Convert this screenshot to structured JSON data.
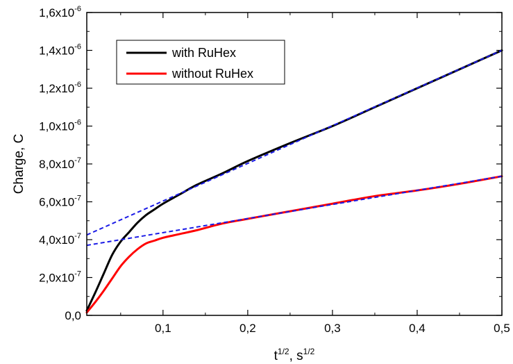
{
  "chart_data": {
    "type": "line",
    "title": "",
    "xlabel": {
      "base": "t",
      "base_sup": "1/2",
      "sep": ", ",
      "unit": "s",
      "unit_sup": "1/2"
    },
    "ylabel": "Charge, C",
    "xlim": [
      0.01,
      0.5
    ],
    "ylim": [
      0,
      1.6e-06
    ],
    "x_ticks": [
      {
        "value": 0.1,
        "label": "0,1"
      },
      {
        "value": 0.2,
        "label": "0,2"
      },
      {
        "value": 0.3,
        "label": "0,3"
      },
      {
        "value": 0.4,
        "label": "0,4"
      },
      {
        "value": 0.5,
        "label": "0,5"
      }
    ],
    "y_ticks": [
      {
        "value": 0,
        "mant": "0,0",
        "exp": ""
      },
      {
        "value": 2e-07,
        "mant": "2,0x10",
        "exp": "-7"
      },
      {
        "value": 4e-07,
        "mant": "4,0x10",
        "exp": "-7"
      },
      {
        "value": 6e-07,
        "mant": "6,0x10",
        "exp": "-7"
      },
      {
        "value": 8e-07,
        "mant": "8,0x10",
        "exp": "-7"
      },
      {
        "value": 1e-06,
        "mant": "1,0x10",
        "exp": "-6"
      },
      {
        "value": 1.2e-06,
        "mant": "1,2x10",
        "exp": "-6"
      },
      {
        "value": 1.4e-06,
        "mant": "1,4x10",
        "exp": "-6"
      },
      {
        "value": 1.6e-06,
        "mant": "1,6x10",
        "exp": "-6"
      }
    ],
    "legend_position": "top-left",
    "series": [
      {
        "name": "with RuHex",
        "color": "#000000",
        "x": [
          0.01,
          0.02,
          0.03,
          0.04,
          0.05,
          0.06,
          0.07,
          0.08,
          0.09,
          0.1,
          0.12,
          0.14,
          0.17,
          0.2,
          0.25,
          0.3,
          0.35,
          0.4,
          0.45,
          0.5
        ],
        "y": [
          2.5e-08,
          1.2e-07,
          2.2e-07,
          3.2e-07,
          3.9e-07,
          4.4e-07,
          4.9e-07,
          5.3e-07,
          5.6e-07,
          5.9e-07,
          6.4e-07,
          6.9e-07,
          7.5e-07,
          8.15e-07,
          9.1e-07,
          1e-06,
          1.1e-06,
          1.2e-06,
          1.3e-06,
          1.4e-06
        ]
      },
      {
        "name": "without RuHex",
        "color": "#ff0000",
        "x": [
          0.01,
          0.02,
          0.03,
          0.04,
          0.05,
          0.06,
          0.07,
          0.08,
          0.09,
          0.1,
          0.12,
          0.14,
          0.17,
          0.2,
          0.25,
          0.3,
          0.35,
          0.4,
          0.45,
          0.5
        ],
        "y": [
          1.5e-08,
          7e-08,
          1.3e-07,
          1.95e-07,
          2.6e-07,
          3.1e-07,
          3.5e-07,
          3.8e-07,
          3.95e-07,
          4.1e-07,
          4.3e-07,
          4.5e-07,
          4.85e-07,
          5.1e-07,
          5.5e-07,
          5.9e-07,
          6.3e-07,
          6.6e-07,
          6.95e-07,
          7.35e-07
        ]
      }
    ],
    "fit_lines": [
      {
        "color": "#1a1ae6",
        "style": "dashed",
        "x": [
          0.01,
          0.5
        ],
        "y": [
          4.25e-07,
          1.4e-06
        ]
      },
      {
        "color": "#1a1ae6",
        "style": "dashed",
        "x": [
          0.01,
          0.5
        ],
        "y": [
          3.7e-07,
          7.35e-07
        ]
      }
    ]
  }
}
